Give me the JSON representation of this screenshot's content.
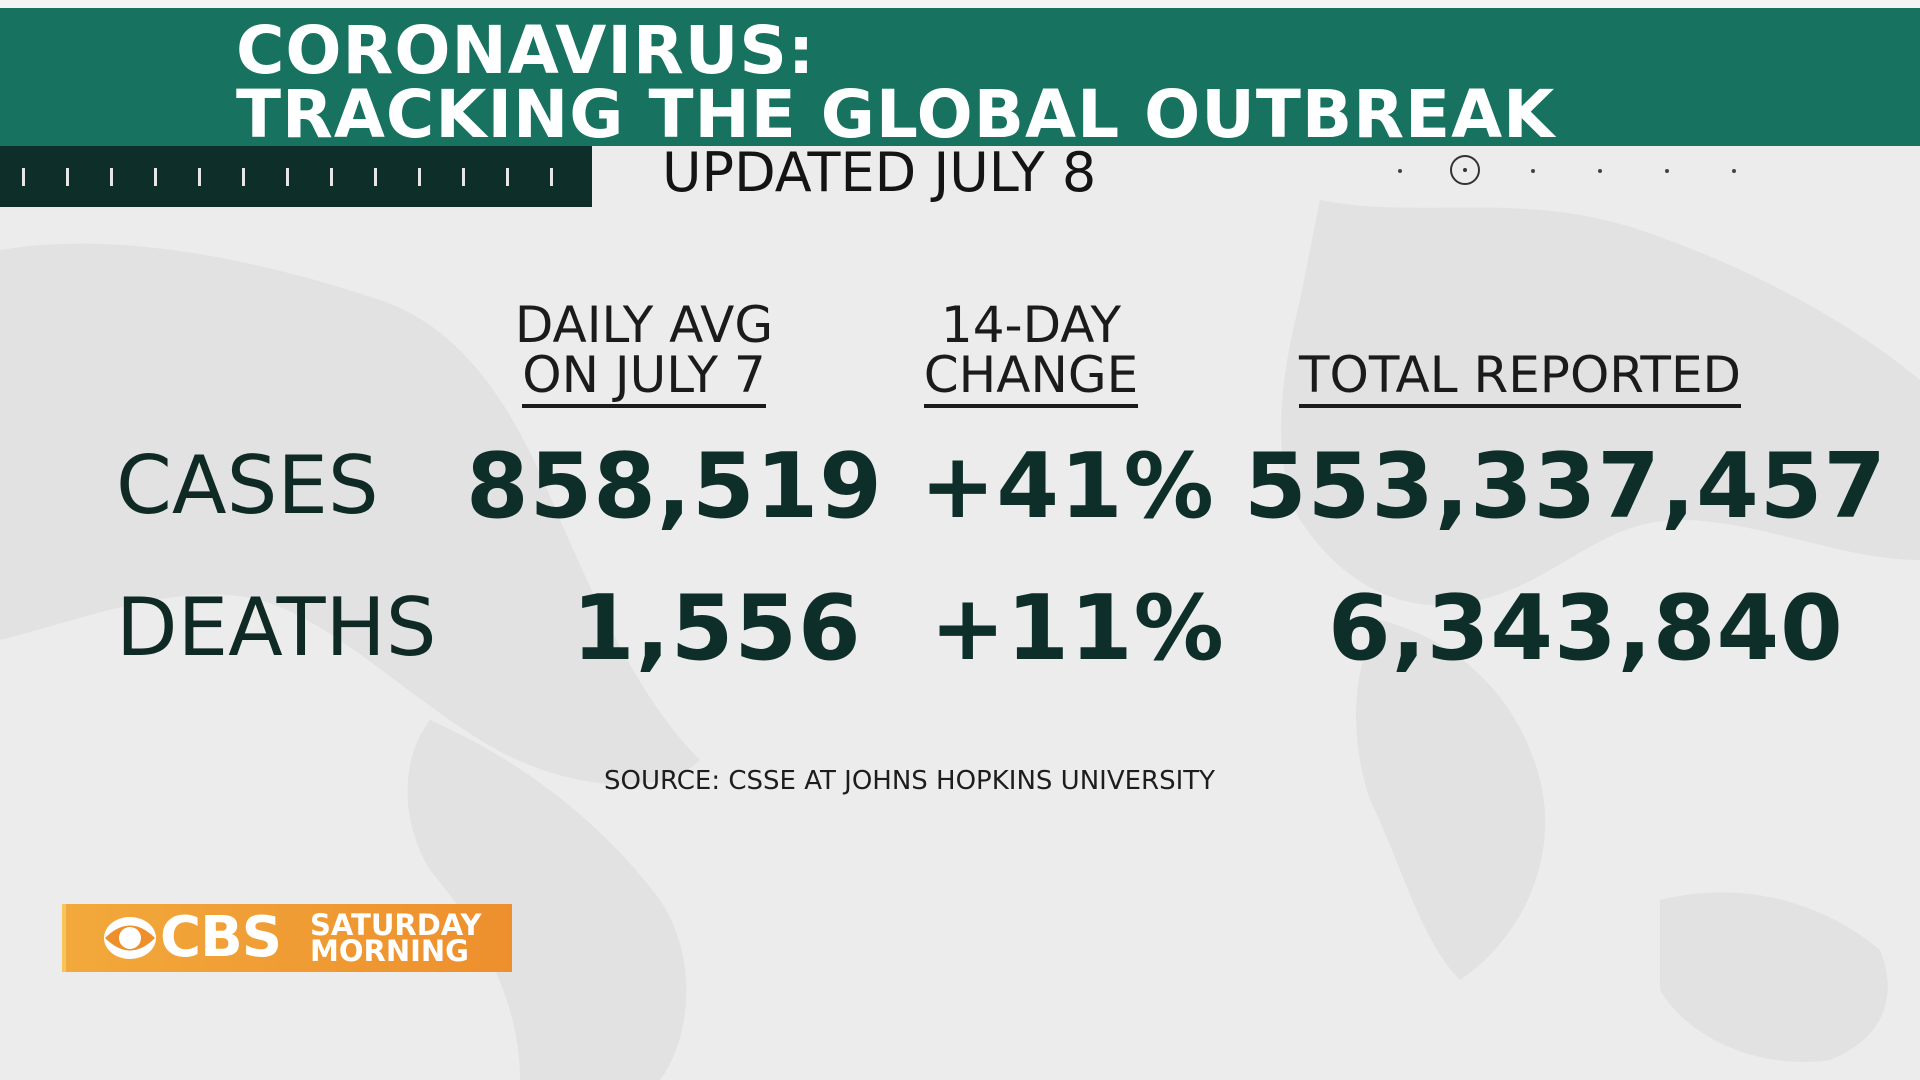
{
  "title": {
    "line1": "CORONAVIRUS:",
    "line2": "TRACKING THE GLOBAL OUTBREAK"
  },
  "updated": "UPDATED JULY 8",
  "columns": {
    "daily_avg": {
      "line1": "DAILY AVG",
      "line2": "ON JULY 7"
    },
    "change": {
      "line1": "14-DAY",
      "line2": "CHANGE"
    },
    "total": {
      "line1": "TOTAL REPORTED"
    }
  },
  "rows": {
    "cases": {
      "label": "CASES",
      "daily_avg": "858,519",
      "change": "+41%",
      "total": "553,337,457"
    },
    "deaths": {
      "label": "DEATHS",
      "daily_avg": "1,556",
      "change": "+11%",
      "total": "6,343,840"
    }
  },
  "source": "SOURCE: CSSE AT JOHNS HOPKINS UNIVERSITY",
  "logo": {
    "brand": "CBS",
    "show_line1": "SATURDAY",
    "show_line2": "MORNING"
  },
  "icons": [
    "cbs-eye-icon",
    "carousel-indicator-icon"
  ],
  "colors": {
    "band": "#17725f",
    "ticker": "#0e2f29",
    "logo": "#f2a93b",
    "text_dark": "#0e2f29"
  }
}
